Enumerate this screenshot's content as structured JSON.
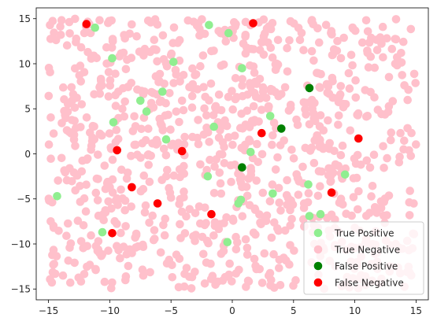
{
  "chart_data": {
    "type": "scatter",
    "title": "",
    "xlabel": "",
    "ylabel": "",
    "xlim": [
      -16.0,
      16.0
    ],
    "ylim": [
      -16.2,
      16.2
    ],
    "xticks": [
      -15,
      -10,
      -5,
      0,
      5,
      10,
      15
    ],
    "yticks": [
      -15,
      -10,
      -5,
      0,
      5,
      10,
      15
    ],
    "grid": false,
    "legend_position": "lower-right",
    "legend": [
      {
        "label": "True Positive",
        "color": "#90ee90"
      },
      {
        "label": "True Negative",
        "color": "#ffc0cb"
      },
      {
        "label": "False Positive",
        "color": "#008000"
      },
      {
        "label": "False Negative",
        "color": "#ff0000"
      }
    ],
    "series": [
      {
        "name": "True Negative",
        "color": "#ffc0cb",
        "generated": {
          "count": 1000,
          "x_range": [
            -15,
            15
          ],
          "y_range": [
            -15,
            15
          ],
          "seed": 7
        }
      },
      {
        "name": "True Positive",
        "color": "#90ee90",
        "points": [
          [
            -11.2,
            14.0
          ],
          [
            -9.8,
            10.6
          ],
          [
            -9.7,
            3.5
          ],
          [
            -7.5,
            5.9
          ],
          [
            -7.0,
            4.7
          ],
          [
            -5.7,
            6.9
          ],
          [
            -5.4,
            1.6
          ],
          [
            -4.8,
            10.2
          ],
          [
            -1.9,
            14.3
          ],
          [
            -0.3,
            13.4
          ],
          [
            0.8,
            9.5
          ],
          [
            -1.5,
            3.0
          ],
          [
            1.5,
            0.2
          ],
          [
            3.1,
            4.2
          ],
          [
            -2.0,
            -2.5
          ],
          [
            0.5,
            -5.5
          ],
          [
            0.7,
            -5.1
          ],
          [
            3.3,
            -4.4
          ],
          [
            -0.4,
            -9.8
          ],
          [
            -14.3,
            -4.7
          ],
          [
            -10.6,
            -8.7
          ],
          [
            6.2,
            -3.4
          ],
          [
            6.3,
            -6.9
          ],
          [
            7.2,
            -6.7
          ],
          [
            9.2,
            -2.3
          ]
        ]
      },
      {
        "name": "False Positive",
        "color": "#008000",
        "points": [
          [
            6.3,
            7.3
          ],
          [
            4.0,
            2.8
          ],
          [
            0.8,
            -1.5
          ]
        ]
      },
      {
        "name": "False Negative",
        "color": "#ff0000",
        "points": [
          [
            -11.9,
            14.4
          ],
          [
            1.7,
            14.5
          ],
          [
            -9.4,
            0.4
          ],
          [
            -4.1,
            0.3
          ],
          [
            2.4,
            2.3
          ],
          [
            10.3,
            1.7
          ],
          [
            -8.2,
            -3.7
          ],
          [
            -6.1,
            -5.5
          ],
          [
            -1.7,
            -6.7
          ],
          [
            -9.8,
            -8.8
          ],
          [
            8.1,
            -4.3
          ]
        ]
      }
    ]
  }
}
